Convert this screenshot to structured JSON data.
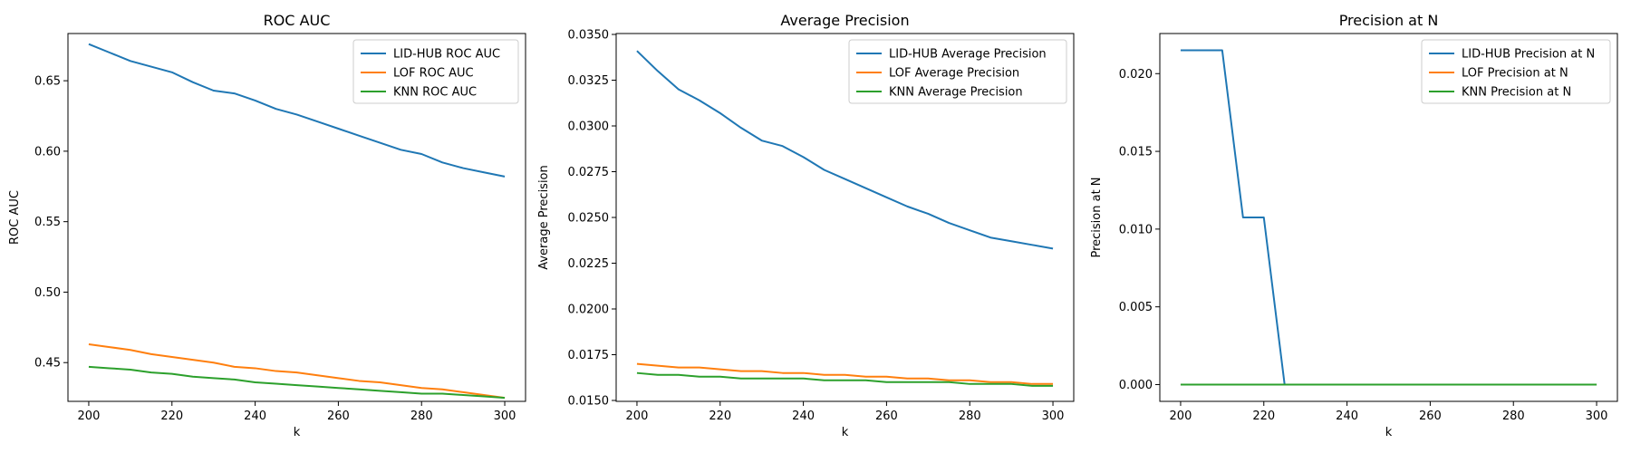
{
  "chart_data": [
    {
      "type": "line",
      "title": "ROC AUC",
      "xlabel": "k",
      "ylabel": "ROC AUC",
      "xlim": [
        195,
        305
      ],
      "ylim": [
        0.4225,
        0.6835
      ],
      "xticks": [
        200,
        220,
        240,
        260,
        280,
        300
      ],
      "yticks": [
        0.45,
        0.5,
        0.55,
        0.6,
        0.65
      ],
      "ytick_labels": [
        "0.45",
        "0.50",
        "0.55",
        "0.60",
        "0.65"
      ],
      "grid": false,
      "legend": "top-right",
      "x": [
        200,
        205,
        210,
        215,
        220,
        225,
        230,
        235,
        240,
        245,
        250,
        255,
        260,
        265,
        270,
        275,
        280,
        285,
        290,
        295,
        300
      ],
      "series": [
        {
          "name": "LID-HUB ROC AUC",
          "color": "#1f77b4",
          "values": [
            0.676,
            0.67,
            0.664,
            0.66,
            0.656,
            0.649,
            0.643,
            0.641,
            0.636,
            0.63,
            0.626,
            0.621,
            0.616,
            0.611,
            0.606,
            0.601,
            0.598,
            0.592,
            0.588,
            0.585,
            0.582
          ]
        },
        {
          "name": "LOF ROC AUC",
          "color": "#ff7f0e",
          "values": [
            0.463,
            0.461,
            0.459,
            0.456,
            0.454,
            0.452,
            0.45,
            0.447,
            0.446,
            0.444,
            0.443,
            0.441,
            0.439,
            0.437,
            0.436,
            0.434,
            0.432,
            0.431,
            0.429,
            0.427,
            0.425
          ]
        },
        {
          "name": "KNN ROC AUC",
          "color": "#2ca02c",
          "values": [
            0.447,
            0.446,
            0.445,
            0.443,
            0.442,
            0.44,
            0.439,
            0.438,
            0.436,
            0.435,
            0.434,
            0.433,
            0.432,
            0.431,
            0.43,
            0.429,
            0.428,
            0.428,
            0.427,
            0.426,
            0.425
          ]
        }
      ]
    },
    {
      "type": "line",
      "title": "Average Precision",
      "xlabel": "k",
      "ylabel": "Average Precision",
      "xlim": [
        195,
        305
      ],
      "ylim": [
        0.01495,
        0.03505
      ],
      "xticks": [
        200,
        220,
        240,
        260,
        280,
        300
      ],
      "yticks": [
        0.015,
        0.0175,
        0.02,
        0.0225,
        0.025,
        0.0275,
        0.03,
        0.0325,
        0.035
      ],
      "ytick_labels": [
        "0.0150",
        "0.0175",
        "0.0200",
        "0.0225",
        "0.0250",
        "0.0275",
        "0.0300",
        "0.0325",
        "0.0350"
      ],
      "grid": false,
      "legend": "top-right",
      "x": [
        200,
        205,
        210,
        215,
        220,
        225,
        230,
        235,
        240,
        245,
        250,
        255,
        260,
        265,
        270,
        275,
        280,
        285,
        290,
        295,
        300
      ],
      "series": [
        {
          "name": "LID-HUB Average Precision",
          "color": "#1f77b4",
          "values": [
            0.0341,
            0.033,
            0.032,
            0.0314,
            0.0307,
            0.0299,
            0.0292,
            0.0289,
            0.0283,
            0.0276,
            0.0271,
            0.0266,
            0.0261,
            0.0256,
            0.0252,
            0.0247,
            0.0243,
            0.0239,
            0.0237,
            0.0235,
            0.0233
          ]
        },
        {
          "name": "LOF Average Precision",
          "color": "#ff7f0e",
          "values": [
            0.017,
            0.0169,
            0.0168,
            0.0168,
            0.0167,
            0.0166,
            0.0166,
            0.0165,
            0.0165,
            0.0164,
            0.0164,
            0.0163,
            0.0163,
            0.0162,
            0.0162,
            0.0161,
            0.0161,
            0.016,
            0.016,
            0.0159,
            0.0159
          ]
        },
        {
          "name": "KNN Average Precision",
          "color": "#2ca02c",
          "values": [
            0.0165,
            0.0164,
            0.0164,
            0.0163,
            0.0163,
            0.0162,
            0.0162,
            0.0162,
            0.0162,
            0.0161,
            0.0161,
            0.0161,
            0.016,
            0.016,
            0.016,
            0.016,
            0.0159,
            0.0159,
            0.0159,
            0.0158,
            0.0158
          ]
        }
      ]
    },
    {
      "type": "line",
      "title": "Precision at N",
      "xlabel": "k",
      "ylabel": "Precision at N",
      "xlim": [
        195,
        305
      ],
      "ylim": [
        -0.00108,
        0.02258
      ],
      "xticks": [
        200,
        220,
        240,
        260,
        280,
        300
      ],
      "yticks": [
        0.0,
        0.005,
        0.01,
        0.015,
        0.02
      ],
      "ytick_labels": [
        "0.000",
        "0.005",
        "0.010",
        "0.015",
        "0.020"
      ],
      "grid": false,
      "legend": "top-right",
      "x": [
        200,
        205,
        210,
        215,
        220,
        225,
        230,
        235,
        240,
        245,
        250,
        255,
        260,
        265,
        270,
        275,
        280,
        285,
        290,
        295,
        300
      ],
      "series": [
        {
          "name": "LID-HUB Precision at N",
          "color": "#1f77b4",
          "values": [
            0.0215,
            0.0215,
            0.0215,
            0.01075,
            0.01075,
            0,
            0,
            0,
            0,
            0,
            0,
            0,
            0,
            0,
            0,
            0,
            0,
            0,
            0,
            0,
            0
          ]
        },
        {
          "name": "LOF Precision at N",
          "color": "#ff7f0e",
          "values": [
            0,
            0,
            0,
            0,
            0,
            0,
            0,
            0,
            0,
            0,
            0,
            0,
            0,
            0,
            0,
            0,
            0,
            0,
            0,
            0,
            0
          ]
        },
        {
          "name": "KNN Precision at N",
          "color": "#2ca02c",
          "values": [
            0,
            0,
            0,
            0,
            0,
            0,
            0,
            0,
            0,
            0,
            0,
            0,
            0,
            0,
            0,
            0,
            0,
            0,
            0,
            0,
            0
          ]
        }
      ]
    }
  ]
}
